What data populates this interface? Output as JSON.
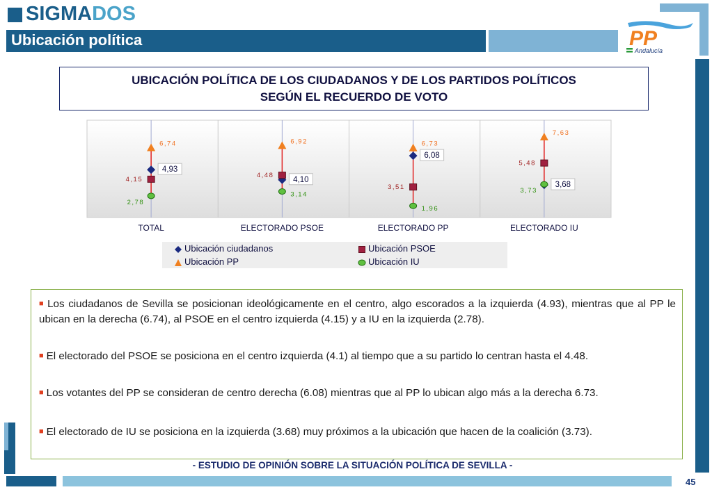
{
  "brand": {
    "logo_part1": "SIGMA",
    "logo_part2": "DOS"
  },
  "header": {
    "title": "Ubicación política"
  },
  "party_logo": {
    "text": "PP",
    "subtext": "Andalucía"
  },
  "box_title": {
    "line1": "UBICACIÓN POLÍTICA DE LOS CIUDADANOS Y DE LOS PARTIDOS POLÍTICOS",
    "line2": "SEGÚN EL RECUERDO DE VOTO"
  },
  "colors": {
    "dark_blue": "#1a5e8a",
    "light_blue": "#7fb3d5",
    "ciudadanos": "#1a2a80",
    "psoe": "#a02040",
    "pp": "#f08020",
    "iu": "#40a020"
  },
  "chart_data": {
    "type": "scatter",
    "categories": [
      "TOTAL",
      "ELECTORADO PSOE",
      "ELECTORADO PP",
      "ELECTORADO IU"
    ],
    "series": [
      {
        "name": "Ubicación ciudadanos",
        "marker": "diamond",
        "values": [
          4.93,
          4.1,
          6.08,
          3.68
        ],
        "labels": [
          "4,93",
          "4,10",
          "6,08",
          "3,68"
        ]
      },
      {
        "name": "Ubicación PSOE",
        "marker": "square",
        "values": [
          4.15,
          4.48,
          3.51,
          5.48
        ],
        "labels": [
          "4,15",
          "4,48",
          "3,51",
          "5,48"
        ]
      },
      {
        "name": "Ubicación PP",
        "marker": "triangle",
        "values": [
          6.74,
          6.92,
          6.73,
          7.63
        ],
        "labels": [
          "6,74",
          "6,92",
          "6,73",
          "7,63"
        ]
      },
      {
        "name": "Ubicación IU",
        "marker": "circle",
        "values": [
          2.78,
          3.14,
          1.96,
          3.73
        ],
        "labels": [
          "2,78",
          "3,14",
          "1,96",
          "3,73"
        ]
      }
    ],
    "ylim": [
      1,
      9
    ],
    "legend_position": "bottom"
  },
  "bullets": [
    "Los ciudadanos de Sevilla se posicionan ideológicamente en el centro, algo escorados a la izquierda (4.93), mientras que al PP le ubican en la derecha (6.74), al PSOE en el centro izquierda (4.15) y a IU en la izquierda (2.78).",
    "El electorado del PSOE se posiciona en el centro izquierda (4.1) al tiempo que a su partido lo centran hasta el 4.48.",
    "Los votantes del PP se consideran de centro derecha (6.08) mientras que al PP lo ubican algo más a la derecha 6.73.",
    "El electorado de IU se posiciona en la izquierda (3.68) muy próximos a la ubicación que hacen de la coalición (3.73)."
  ],
  "footer": {
    "text": "- ESTUDIO DE OPINIÓN SOBRE LA SITUACIÓN POLÍTICA DE SEVILLA  -"
  },
  "page": {
    "number": "45"
  }
}
